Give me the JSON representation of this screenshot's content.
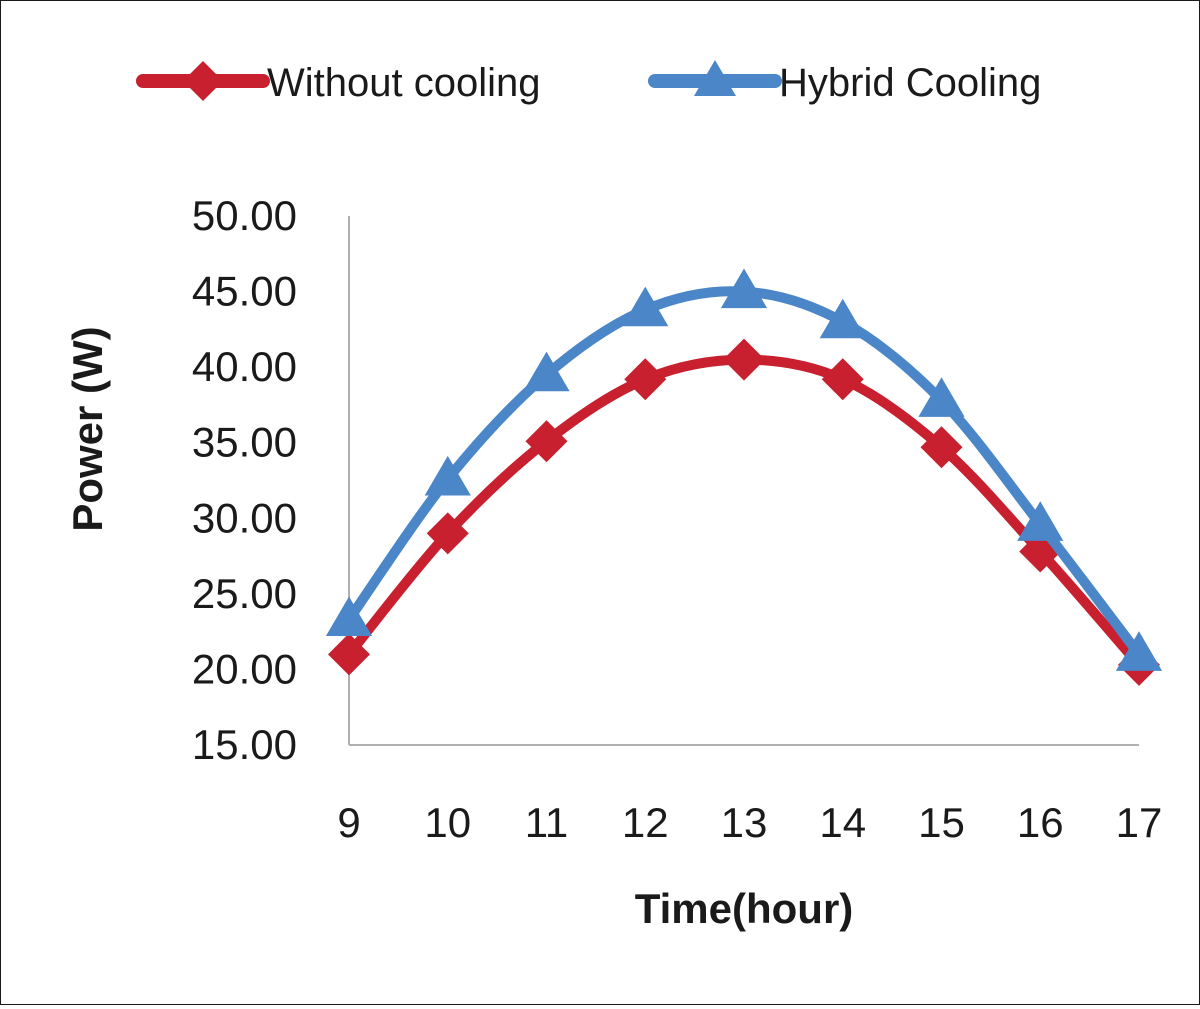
{
  "chart_data": {
    "type": "line",
    "xlabel": "Time(hour)",
    "ylabel": "Power (W)",
    "x": [
      9,
      10,
      11,
      12,
      13,
      14,
      15,
      16,
      17
    ],
    "x_tick_labels": [
      "9",
      "10",
      "11",
      "12",
      "13",
      "14",
      "15",
      "16",
      "17"
    ],
    "ylim": [
      15,
      50
    ],
    "y_ticks": [
      15,
      20,
      25,
      30,
      35,
      40,
      45,
      50
    ],
    "y_tick_labels": [
      "15.00",
      "20.00",
      "25.00",
      "30.00",
      "35.00",
      "40.00",
      "45.00",
      "50.00"
    ],
    "legend_position": "top",
    "grid": false,
    "smooth": true,
    "series": [
      {
        "name": "Without cooling",
        "color": "#c8202f",
        "marker": "diamond",
        "values": [
          21.0,
          29.0,
          35.1,
          39.2,
          40.5,
          39.2,
          34.7,
          27.8,
          20.3
        ]
      },
      {
        "name": "Hybrid Cooling",
        "color": "#4a86c8",
        "marker": "triangle",
        "values": [
          23.3,
          32.6,
          39.5,
          43.8,
          45.0,
          43.0,
          37.8,
          29.6,
          21.0
        ]
      }
    ]
  }
}
